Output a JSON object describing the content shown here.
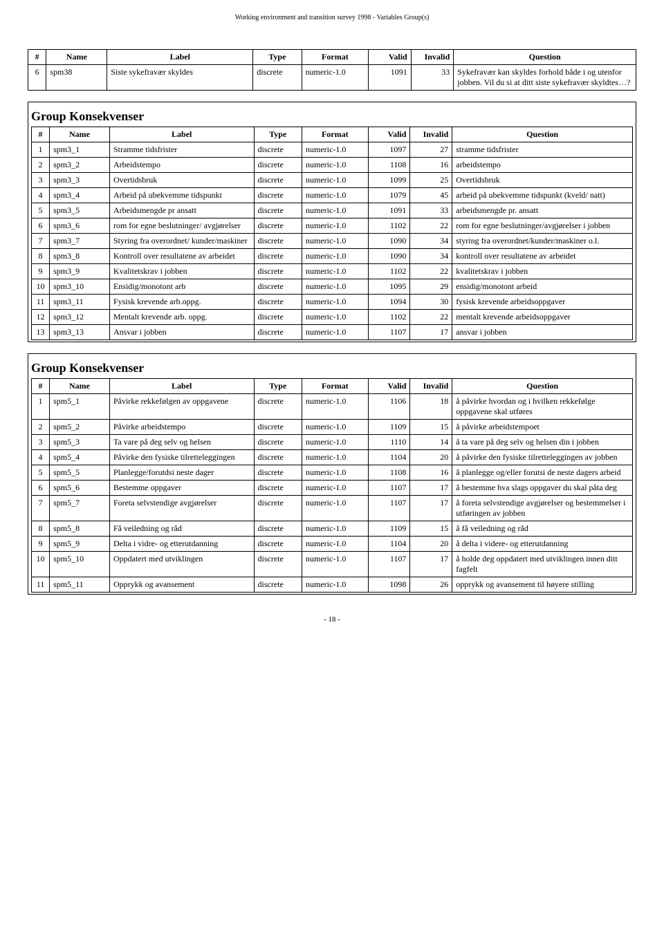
{
  "header": {
    "title": "Working environment and transition survey 1998 - Variables Group(s)"
  },
  "columns": {
    "num": "#",
    "name": "Name",
    "label": "Label",
    "type": "Type",
    "format": "Format",
    "valid": "Valid",
    "invalid": "Invalid",
    "question": "Question"
  },
  "table1": {
    "rows": [
      {
        "n": "6",
        "name": "spm38",
        "label": "Siste sykefravær skyldes",
        "type": "discrete",
        "fmt": "numeric-1.0",
        "valid": "1091",
        "inv": "33",
        "q": "Sykefravær kan skyldes forhold både i og utenfor jobben. Vil du si at ditt siste sykefravær skyldtes…?"
      }
    ]
  },
  "group2": {
    "title": "Group Konsekvenser",
    "rows": [
      {
        "n": "1",
        "name": "spm3_1",
        "label": "Stramme tidsfrister",
        "type": "discrete",
        "fmt": "numeric-1.0",
        "valid": "1097",
        "inv": "27",
        "q": "stramme tidsfrister"
      },
      {
        "n": "2",
        "name": "spm3_2",
        "label": "Arbeidstempo",
        "type": "discrete",
        "fmt": "numeric-1.0",
        "valid": "1108",
        "inv": "16",
        "q": "arbeidstempo"
      },
      {
        "n": "3",
        "name": "spm3_3",
        "label": "Overtidsbruk",
        "type": "discrete",
        "fmt": "numeric-1.0",
        "valid": "1099",
        "inv": "25",
        "q": "Overtidsbruk"
      },
      {
        "n": "4",
        "name": "spm3_4",
        "label": "Arbeid på ubekvemme tidspunkt",
        "type": "discrete",
        "fmt": "numeric-1.0",
        "valid": "1079",
        "inv": "45",
        "q": "arbeid på ubekvemme tidspunkt (kveld/ natt)"
      },
      {
        "n": "5",
        "name": "spm3_5",
        "label": "Arbeidsmengde pr ansatt",
        "type": "discrete",
        "fmt": "numeric-1.0",
        "valid": "1091",
        "inv": "33",
        "q": "arbeidsmengde pr. ansatt"
      },
      {
        "n": "6",
        "name": "spm3_6",
        "label": "rom for egne beslutninger/ avgjørelser",
        "type": "discrete",
        "fmt": "numeric-1.0",
        "valid": "1102",
        "inv": "22",
        "q": "rom for egne beslutninger/avgjørelser i jobben"
      },
      {
        "n": "7",
        "name": "spm3_7",
        "label": "Styring fra overordnet/ kunder/maskiner",
        "type": "discrete",
        "fmt": "numeric-1.0",
        "valid": "1090",
        "inv": "34",
        "q": "styring fra overordnet/kunder/maskiner o.l."
      },
      {
        "n": "8",
        "name": "spm3_8",
        "label": "Kontroll over resultatene av arbeidet",
        "type": "discrete",
        "fmt": "numeric-1.0",
        "valid": "1090",
        "inv": "34",
        "q": "kontroll over resultatene av arbeidet"
      },
      {
        "n": "9",
        "name": "spm3_9",
        "label": "Kvalitetskrav i jobben",
        "type": "discrete",
        "fmt": "numeric-1.0",
        "valid": "1102",
        "inv": "22",
        "q": "kvalitetskrav i jobben"
      },
      {
        "n": "10",
        "name": "spm3_10",
        "label": "Ensidig/monotont arb",
        "type": "discrete",
        "fmt": "numeric-1.0",
        "valid": "1095",
        "inv": "29",
        "q": "ensidig/monotont arbeid"
      },
      {
        "n": "11",
        "name": "spm3_11",
        "label": "Fysisk krevende arb.oppg.",
        "type": "discrete",
        "fmt": "numeric-1.0",
        "valid": "1094",
        "inv": "30",
        "q": "fysisk krevende arbeidsoppgaver"
      },
      {
        "n": "12",
        "name": "spm3_12",
        "label": "Mentalt krevende arb. oppg.",
        "type": "discrete",
        "fmt": "numeric-1.0",
        "valid": "1102",
        "inv": "22",
        "q": "mentalt krevende arbeidsoppgaver"
      },
      {
        "n": "13",
        "name": "spm3_13",
        "label": "Ansvar i jobben",
        "type": "discrete",
        "fmt": "numeric-1.0",
        "valid": "1107",
        "inv": "17",
        "q": "ansvar i jobben"
      }
    ]
  },
  "group3": {
    "title": "Group Konsekvenser",
    "rows": [
      {
        "n": "1",
        "name": "spm5_1",
        "label": "Påvirke rekkefølgen av oppgavene",
        "type": "discrete",
        "fmt": "numeric-1.0",
        "valid": "1106",
        "inv": "18",
        "q": "å påvirke hvordan og i hvilken rekkefølge oppgavene skal utføres"
      },
      {
        "n": "2",
        "name": "spm5_2",
        "label": "Påvirke arbeidstempo",
        "type": "discrete",
        "fmt": "numeric-1.0",
        "valid": "1109",
        "inv": "15",
        "q": "å påvirke arbeidstempoet"
      },
      {
        "n": "3",
        "name": "spm5_3",
        "label": "Ta vare på deg selv og helsen",
        "type": "discrete",
        "fmt": "numeric-1.0",
        "valid": "1110",
        "inv": "14",
        "q": "å ta vare på deg selv og helsen din i jobben"
      },
      {
        "n": "4",
        "name": "spm5_4",
        "label": "Påvirke den fysiske tilretteleggingen",
        "type": "discrete",
        "fmt": "numeric-1.0",
        "valid": "1104",
        "inv": "20",
        "q": "å påvirke den fysiske tilretteleggingen av jobben"
      },
      {
        "n": "5",
        "name": "spm5_5",
        "label": "Planlegge/forutdsi neste dager",
        "type": "discrete",
        "fmt": "numeric-1.0",
        "valid": "1108",
        "inv": "16",
        "q": "å planlegge og/eller forutsi de neste dagers arbeid"
      },
      {
        "n": "6",
        "name": "spm5_6",
        "label": "Bestemme oppgaver",
        "type": "discrete",
        "fmt": "numeric-1.0",
        "valid": "1107",
        "inv": "17",
        "q": "å bestemme hva slags oppgaver du skal påta deg"
      },
      {
        "n": "7",
        "name": "spm5_7",
        "label": "Foreta selvstendige avgjørelser",
        "type": "discrete",
        "fmt": "numeric-1.0",
        "valid": "1107",
        "inv": "17",
        "q": "å foreta selvstendige avgjørelser og bestemmelser i utføringen av jobben"
      },
      {
        "n": "8",
        "name": "spm5_8",
        "label": "Få veiledning og råd",
        "type": "discrete",
        "fmt": "numeric-1.0",
        "valid": "1109",
        "inv": "15",
        "q": "å få veiledning og råd"
      },
      {
        "n": "9",
        "name": "spm5_9",
        "label": "Delta i vidre- og etterutdanning",
        "type": "discrete",
        "fmt": "numeric-1.0",
        "valid": "1104",
        "inv": "20",
        "q": "å delta i videre- og etterutdanning"
      },
      {
        "n": "10",
        "name": "spm5_10",
        "label": "Oppdatert med utviklingen",
        "type": "discrete",
        "fmt": "numeric-1.0",
        "valid": "1107",
        "inv": "17",
        "q": "å holde deg oppdatert med utviklingen innen ditt fagfelt"
      },
      {
        "n": "11",
        "name": "spm5_11",
        "label": "Opprykk og avansement",
        "type": "discrete",
        "fmt": "numeric-1.0",
        "valid": "1098",
        "inv": "26",
        "q": "opprykk og avansement til høyere stilling"
      }
    ]
  },
  "footer": {
    "page": "- 18 -"
  }
}
